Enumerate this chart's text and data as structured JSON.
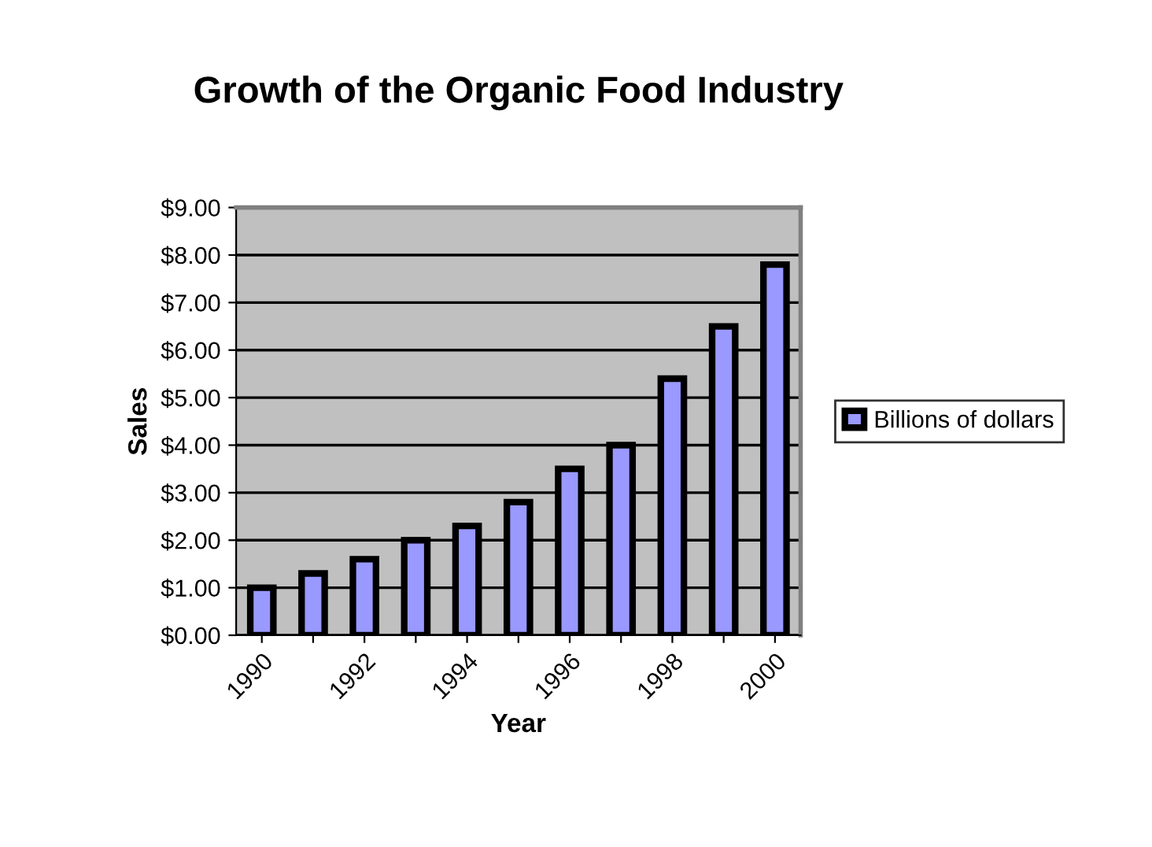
{
  "chart_data": {
    "type": "bar",
    "title": "Growth of the Organic Food Industry",
    "xlabel": "Year",
    "ylabel": "Sales",
    "categories": [
      "1990",
      null,
      "1992",
      null,
      "1994",
      null,
      "1996",
      null,
      "1998",
      null,
      "2000"
    ],
    "series": [
      {
        "name": "Billions of dollars",
        "color": "#9999ff",
        "values": [
          1.0,
          1.3,
          1.6,
          2.0,
          2.3,
          2.8,
          3.5,
          4.0,
          5.4,
          6.5,
          7.8
        ]
      }
    ],
    "ylim": [
      0,
      9
    ],
    "yticks": [
      {
        "value": 0,
        "label": "$0.00"
      },
      {
        "value": 1,
        "label": "$1.00"
      },
      {
        "value": 2,
        "label": "$2.00"
      },
      {
        "value": 3,
        "label": "$3.00"
      },
      {
        "value": 4,
        "label": "$4.00"
      },
      {
        "value": 5,
        "label": "$5.00"
      },
      {
        "value": 6,
        "label": "$6.00"
      },
      {
        "value": 7,
        "label": "$7.00"
      },
      {
        "value": 8,
        "label": "$8.00"
      },
      {
        "value": 9,
        "label": "$9.00"
      }
    ],
    "grid": "y",
    "legend": "right"
  }
}
